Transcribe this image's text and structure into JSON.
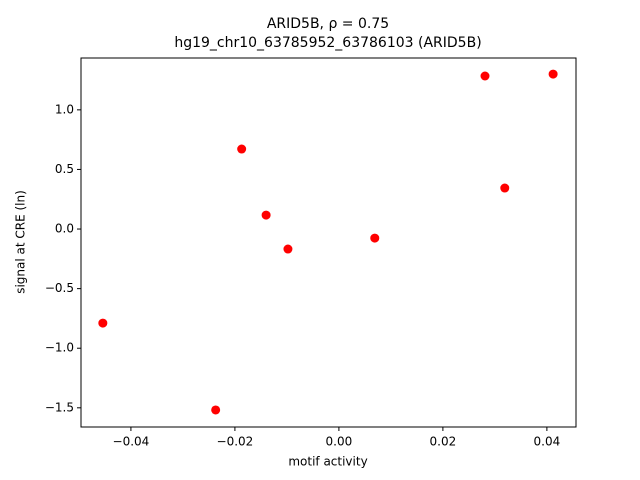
{
  "chart_data": {
    "type": "scatter",
    "title": "ARID5B, ρ = 0.75",
    "subtitle": "hg19_chr10_63785952_63786103 (ARID5B)",
    "x_label": "motif activity",
    "y_label": "signal at CRE (ln)",
    "series": [
      {
        "color": "#ff0000",
        "x": [
          -0.0454,
          -0.0237,
          -0.0187,
          -0.014,
          -0.0098,
          0.0069,
          0.0281,
          0.0319,
          0.0412
        ],
        "values": [
          -0.789,
          -1.518,
          0.671,
          0.117,
          -0.168,
          -0.076,
          1.284,
          0.344,
          1.3
        ]
      }
    ],
    "xlim": [
      -0.0496,
      0.0456
    ],
    "ylim": [
      -1.661,
      1.435
    ],
    "xticks": [
      {
        "value": -0.04,
        "label": "−0.04"
      },
      {
        "value": -0.02,
        "label": "−0.02"
      },
      {
        "value": 0,
        "label": "0.00"
      },
      0.02,
      0.04
    ],
    "yticks": [
      {
        "value": -1.5,
        "label": "−1.5"
      },
      {
        "value": -1.0,
        "label": "−1.0"
      },
      {
        "value": -0.5,
        "label": "−0.5"
      },
      {
        "value": 0,
        "label": "0.0"
      },
      0.5,
      {
        "value": 1.0,
        "label": "1.0"
      }
    ],
    "grid": false
  }
}
